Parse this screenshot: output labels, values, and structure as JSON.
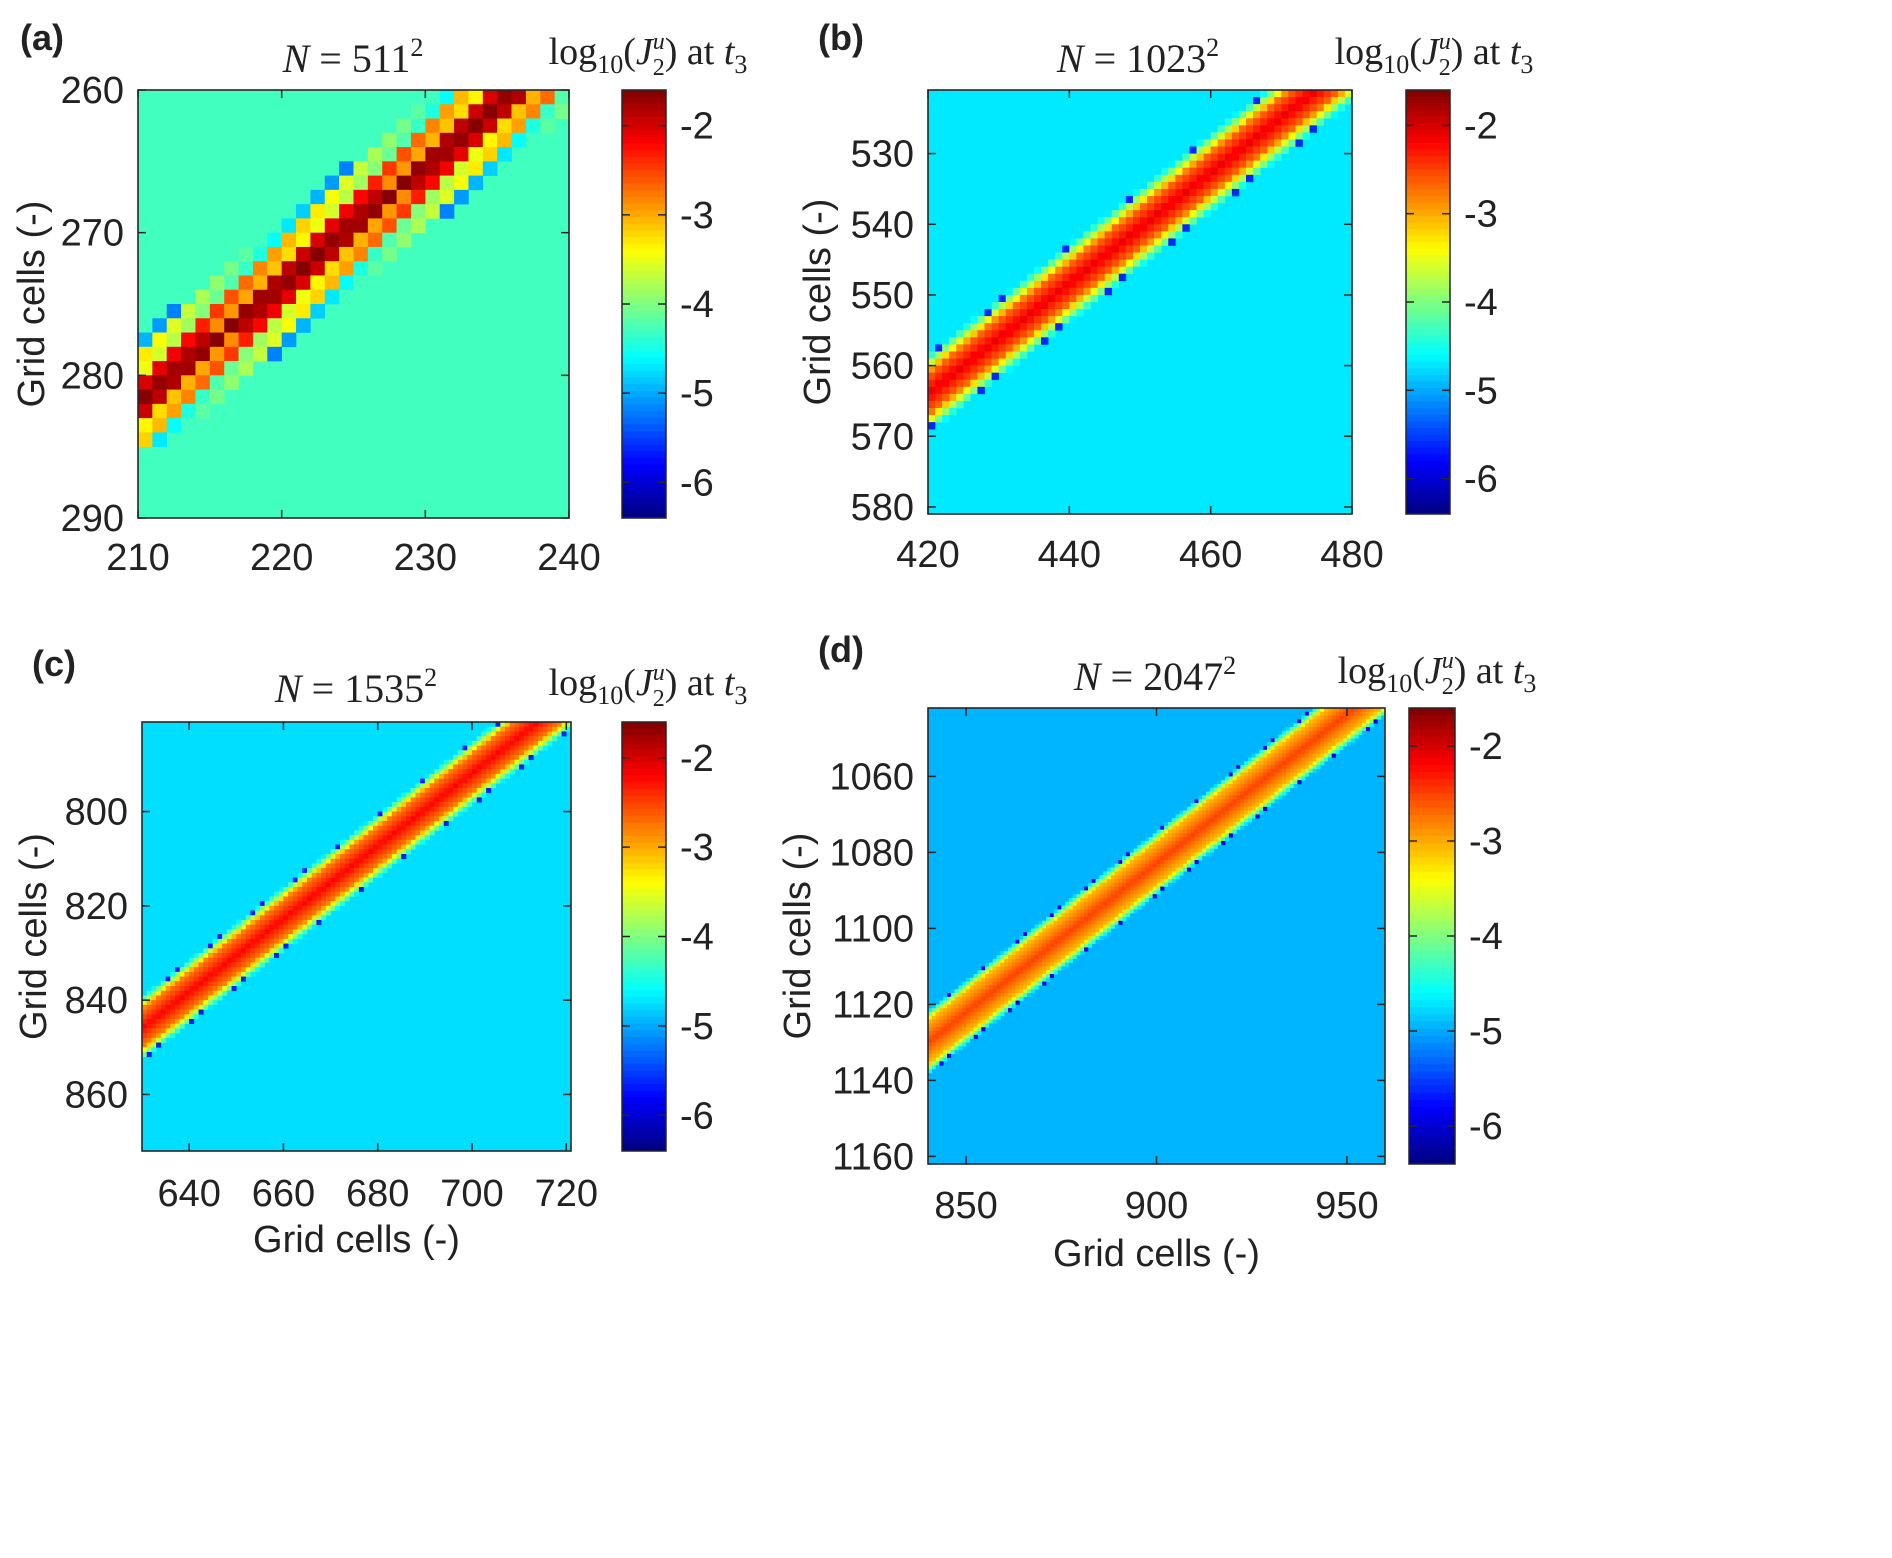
{
  "figure": {
    "description_free": true
  },
  "chart_data": [
    {
      "type": "heatmap",
      "panel_label": "(a)",
      "title": {
        "lhs": "N",
        "eq": "=",
        "base": "511",
        "exp": "2"
      },
      "colorbar_label": {
        "fn": "log",
        "sub": "10",
        "open": "(",
        "var": "J",
        "var_sup": "u",
        "var_sub": "2",
        "close": ")",
        "at": "at",
        "t": "t",
        "t_sub": "3"
      },
      "xlabel": "",
      "ylabel": "Grid cells (-)",
      "xlim": [
        210,
        240
      ],
      "ylim": [
        260,
        290
      ],
      "y_reversed": true,
      "xticks": [
        210,
        220,
        230,
        240
      ],
      "xtick_labels": [
        "210",
        "220",
        "230",
        "240"
      ],
      "yticks": [
        260,
        270,
        280,
        290
      ],
      "ytick_labels": [
        "260",
        "270",
        "280",
        "290"
      ],
      "clim": [
        -6.4,
        -1.6
      ],
      "cbar_ticks": [
        -2,
        -3,
        -4,
        -5,
        -6
      ],
      "cbar_tick_labels": [
        "-2",
        "-3",
        "-4",
        "-5",
        "-6"
      ],
      "band": {
        "x0": 210,
        "y0": 282,
        "x1": 237,
        "y1": 259.5,
        "halfwidth": 1.2,
        "peak": -1.6,
        "background": -4.3,
        "checker": true,
        "cell_size": 1
      }
    },
    {
      "type": "heatmap",
      "panel_label": "(b)",
      "title": {
        "lhs": "N",
        "eq": "=",
        "base": "1023",
        "exp": "2"
      },
      "colorbar_label": {
        "fn": "log",
        "sub": "10",
        "open": "(",
        "var": "J",
        "var_sup": "u",
        "var_sub": "2",
        "close": ")",
        "at": "at",
        "t": "t",
        "t_sub": "3"
      },
      "xlabel": "",
      "ylabel": "Grid cells (-)",
      "xlim": [
        420,
        480
      ],
      "ylim": [
        521,
        581
      ],
      "y_reversed": true,
      "xticks": [
        420,
        440,
        460,
        480
      ],
      "xtick_labels": [
        "420",
        "440",
        "460",
        "480"
      ],
      "yticks": [
        530,
        540,
        550,
        560,
        570,
        580
      ],
      "ytick_labels": [
        "530",
        "540",
        "550",
        "560",
        "570",
        "580"
      ],
      "clim": [
        -6.4,
        -1.6
      ],
      "cbar_ticks": [
        -2,
        -3,
        -4,
        -5,
        -6
      ],
      "cbar_tick_labels": [
        "-2",
        "-3",
        "-4",
        "-5",
        "-6"
      ],
      "band": {
        "x0": 420,
        "y0": 564,
        "x1": 475,
        "y1": 521,
        "halfwidth": 2.2,
        "peak": -2.1,
        "background": -4.7,
        "checker": false,
        "cell_size": 1
      }
    },
    {
      "type": "heatmap",
      "panel_label": "(c)",
      "title": {
        "lhs": "N",
        "eq": "=",
        "base": "1535",
        "exp": "2"
      },
      "colorbar_label": {
        "fn": "log",
        "sub": "10",
        "open": "(",
        "var": "J",
        "var_sup": "u",
        "var_sub": "2",
        "close": ")",
        "at": "at",
        "t": "t",
        "t_sub": "3"
      },
      "xlabel": "Grid cells (-)",
      "ylabel": "Grid cells (-)",
      "xlim": [
        630,
        721
      ],
      "ylim": [
        781,
        872
      ],
      "y_reversed": true,
      "xticks": [
        640,
        660,
        680,
        700,
        720
      ],
      "xtick_labels": [
        "640",
        "660",
        "680",
        "700",
        "720"
      ],
      "yticks": [
        800,
        820,
        840,
        860
      ],
      "ytick_labels": [
        "800",
        "820",
        "840",
        "860"
      ],
      "clim": [
        -6.4,
        -1.6
      ],
      "cbar_ticks": [
        -2,
        -3,
        -4,
        -5,
        -6
      ],
      "cbar_tick_labels": [
        "-2",
        "-3",
        "-4",
        "-5",
        "-6"
      ],
      "band": {
        "x0": 630,
        "y0": 846,
        "x1": 714,
        "y1": 781,
        "halfwidth": 3.2,
        "peak": -2.2,
        "background": -4.75,
        "checker": false,
        "cell_size": 1
      }
    },
    {
      "type": "heatmap",
      "panel_label": "(d)",
      "title": {
        "lhs": "N",
        "eq": "=",
        "base": "2047",
        "exp": "2"
      },
      "colorbar_label": {
        "fn": "log",
        "sub": "10",
        "open": "(",
        "var": "J",
        "var_sup": "u",
        "var_sub": "2",
        "close": ")",
        "at": "at",
        "t": "t",
        "t_sub": "3"
      },
      "xlabel": "Grid cells (-)",
      "ylabel": "Grid cells (-)",
      "xlim": [
        840,
        960
      ],
      "ylim": [
        1042,
        1162
      ],
      "y_reversed": true,
      "xticks": [
        850,
        900,
        950
      ],
      "xtick_labels": [
        "850",
        "900",
        "950"
      ],
      "yticks": [
        1060,
        1080,
        1100,
        1120,
        1140,
        1160
      ],
      "ytick_labels": [
        "1060",
        "1080",
        "1100",
        "1120",
        "1140",
        "1160"
      ],
      "clim": [
        -6.4,
        -1.6
      ],
      "cbar_ticks": [
        -2,
        -3,
        -4,
        -5,
        -6
      ],
      "cbar_tick_labels": [
        "-2",
        "-3",
        "-4",
        "-5",
        "-6"
      ],
      "band": {
        "x0": 840,
        "y0": 1130,
        "x1": 952,
        "y1": 1042,
        "halfwidth": 4.5,
        "peak": -2.5,
        "background": -4.95,
        "checker": false,
        "cell_size": 1
      }
    }
  ]
}
